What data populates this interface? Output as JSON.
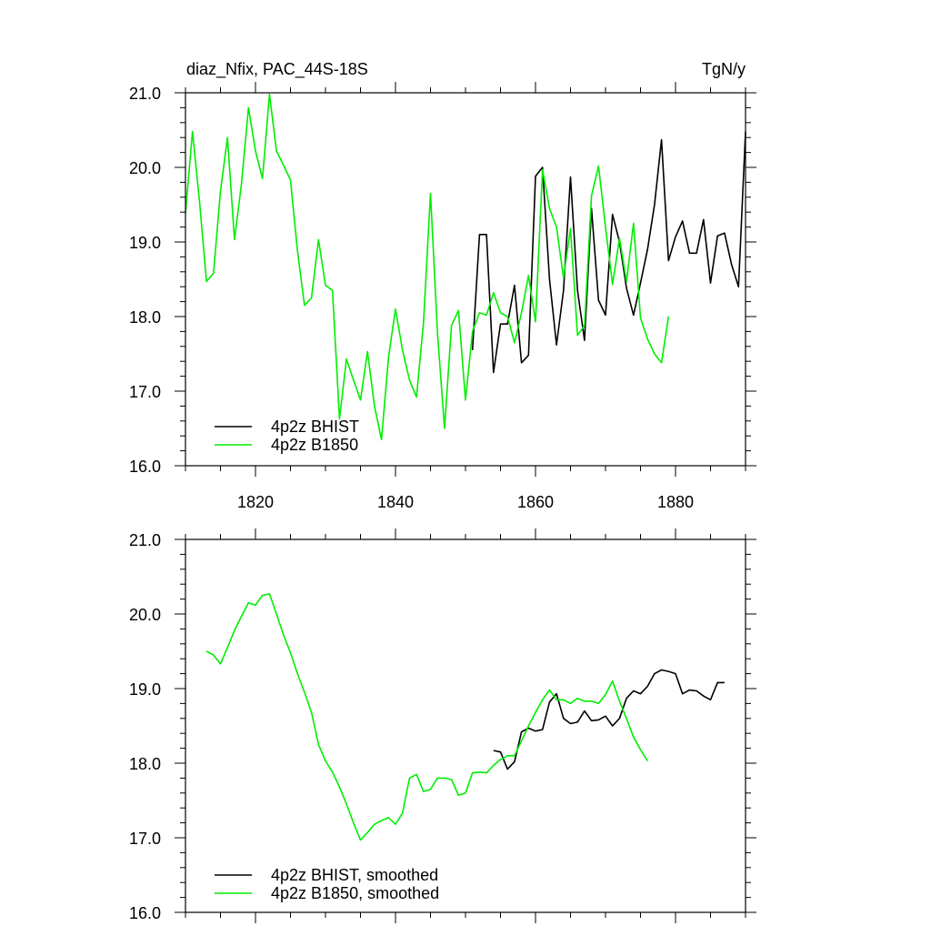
{
  "chart_data": [
    {
      "type": "line",
      "title_left": "diaz_Nfix, PAC_44S-18S",
      "title_right": "TgN/y",
      "xlim": [
        1810,
        1890
      ],
      "ylim": [
        16.0,
        21.0
      ],
      "y_ticks": [
        "16.0",
        "17.0",
        "18.0",
        "19.0",
        "20.0",
        "21.0"
      ],
      "x_ticks": [
        "1820",
        "1840",
        "1860",
        "1880"
      ],
      "series": [
        {
          "name": "4p2z BHIST",
          "color": "#000000",
          "x": [
            1851,
            1852,
            1853,
            1854,
            1855,
            1856,
            1857,
            1858,
            1859,
            1860,
            1861,
            1862,
            1863,
            1864,
            1865,
            1866,
            1867,
            1868,
            1869,
            1870,
            1871,
            1872,
            1873,
            1874,
            1875,
            1876,
            1877,
            1878,
            1879,
            1880,
            1881,
            1882,
            1883,
            1884,
            1885,
            1886,
            1887,
            1888,
            1889,
            1890
          ],
          "y": [
            17.55,
            19.1,
            19.1,
            17.25,
            17.9,
            17.9,
            18.42,
            17.38,
            17.48,
            19.88,
            20.0,
            18.5,
            17.62,
            18.35,
            19.87,
            18.35,
            17.68,
            19.45,
            18.22,
            18.02,
            19.37,
            19.0,
            18.38,
            18.02,
            18.45,
            18.9,
            19.5,
            20.37,
            18.75,
            19.07,
            19.28,
            18.85,
            18.85,
            19.3,
            18.45,
            19.08,
            19.12,
            18.7,
            18.4,
            20.48
          ]
        },
        {
          "name": "4p2z B1850",
          "color": "#00ee00",
          "x": [
            1810,
            1811,
            1812,
            1813,
            1814,
            1815,
            1816,
            1817,
            1818,
            1819,
            1820,
            1821,
            1822,
            1823,
            1824,
            1825,
            1826,
            1827,
            1828,
            1829,
            1830,
            1831,
            1832,
            1833,
            1834,
            1835,
            1836,
            1837,
            1838,
            1839,
            1840,
            1841,
            1842,
            1843,
            1844,
            1845,
            1846,
            1847,
            1848,
            1849,
            1850,
            1851,
            1852,
            1853,
            1854,
            1855,
            1856,
            1857,
            1858,
            1859,
            1860,
            1861,
            1862,
            1863,
            1864,
            1865,
            1866,
            1867,
            1868,
            1869,
            1870,
            1871,
            1872,
            1873,
            1874,
            1875,
            1876,
            1877,
            1878,
            1879
          ],
          "y": [
            19.38,
            20.48,
            19.55,
            18.47,
            18.58,
            19.68,
            20.4,
            19.03,
            19.78,
            20.8,
            20.22,
            19.85,
            20.98,
            20.22,
            20.03,
            19.83,
            18.88,
            18.15,
            18.25,
            19.03,
            18.42,
            18.35,
            16.63,
            17.43,
            17.15,
            16.88,
            17.53,
            16.8,
            16.35,
            17.45,
            18.1,
            17.55,
            17.15,
            16.92,
            17.92,
            19.65,
            17.78,
            16.5,
            17.88,
            18.08,
            16.88,
            17.8,
            18.05,
            18.02,
            18.32,
            18.05,
            18.0,
            17.65,
            18.05,
            18.55,
            17.93,
            19.97,
            19.45,
            19.2,
            18.52,
            19.18,
            17.75,
            17.88,
            19.62,
            20.02,
            19.2,
            18.43,
            19.05,
            18.47,
            19.25,
            17.98,
            17.7,
            17.5,
            17.38,
            18.0
          ]
        }
      ],
      "legend": "bottom-left"
    },
    {
      "type": "line",
      "xlim": [
        1810,
        1890
      ],
      "ylim": [
        16.0,
        21.0
      ],
      "y_ticks": [
        "16.0",
        "17.0",
        "18.0",
        "19.0",
        "20.0",
        "21.0"
      ],
      "series": [
        {
          "name": "4p2z BHIST, smoothed",
          "color": "#000000",
          "x": [
            1854,
            1855,
            1856,
            1857,
            1858,
            1859,
            1860,
            1861,
            1862,
            1863,
            1864,
            1865,
            1866,
            1867,
            1868,
            1869,
            1870,
            1871,
            1872,
            1873,
            1874,
            1875,
            1876,
            1877,
            1878,
            1879,
            1880,
            1881,
            1882,
            1883,
            1884,
            1885,
            1886,
            1887
          ],
          "y": [
            18.17,
            18.15,
            17.92,
            18.02,
            18.42,
            18.47,
            18.43,
            18.45,
            18.82,
            18.93,
            18.6,
            18.53,
            18.55,
            18.7,
            18.57,
            18.58,
            18.63,
            18.5,
            18.6,
            18.87,
            18.97,
            18.93,
            19.03,
            19.2,
            19.25,
            19.23,
            19.2,
            18.93,
            18.98,
            18.97,
            18.9,
            18.85,
            19.08,
            19.08
          ]
        },
        {
          "name": "4p2z B1850, smoothed",
          "color": "#00ee00",
          "x": [
            1813,
            1814,
            1815,
            1816,
            1817,
            1818,
            1819,
            1820,
            1821,
            1822,
            1823,
            1824,
            1825,
            1826,
            1827,
            1828,
            1829,
            1830,
            1831,
            1832,
            1833,
            1834,
            1835,
            1836,
            1837,
            1838,
            1839,
            1840,
            1841,
            1842,
            1843,
            1844,
            1845,
            1846,
            1847,
            1848,
            1849,
            1850,
            1851,
            1852,
            1853,
            1854,
            1855,
            1856,
            1857,
            1858,
            1859,
            1860,
            1861,
            1862,
            1863,
            1864,
            1865,
            1866,
            1867,
            1868,
            1869,
            1870,
            1871,
            1872,
            1873,
            1874,
            1875,
            1876
          ],
          "y": [
            19.5,
            19.45,
            19.33,
            19.55,
            19.78,
            19.97,
            20.15,
            20.12,
            20.25,
            20.27,
            20.0,
            19.72,
            19.48,
            19.2,
            18.95,
            18.68,
            18.25,
            18.03,
            17.88,
            17.68,
            17.45,
            17.2,
            16.97,
            17.07,
            17.18,
            17.23,
            17.27,
            17.18,
            17.33,
            17.8,
            17.85,
            17.62,
            17.65,
            17.8,
            17.8,
            17.78,
            17.57,
            17.6,
            17.87,
            17.88,
            17.87,
            17.97,
            18.05,
            18.1,
            18.1,
            18.3,
            18.5,
            18.68,
            18.85,
            18.98,
            18.85,
            18.85,
            18.8,
            18.87,
            18.83,
            18.83,
            18.8,
            18.92,
            19.1,
            18.83,
            18.6,
            18.35,
            18.18,
            18.03
          ]
        }
      ],
      "legend": "bottom-left"
    }
  ]
}
